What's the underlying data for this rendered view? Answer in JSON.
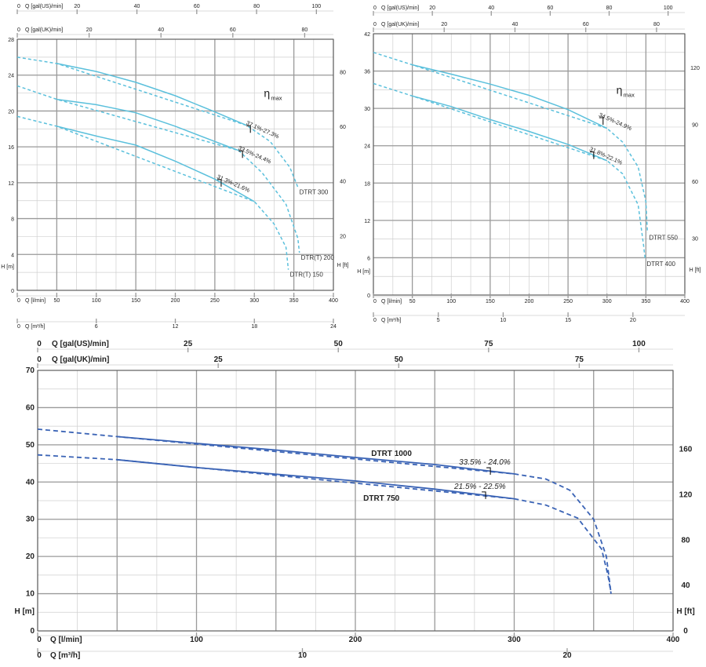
{
  "chart_data": [
    {
      "type": "line",
      "name": "chart-dtrt-300",
      "top_axes": [
        {
          "label": "Q [gal(US)/min]",
          "ticks": [
            0,
            20,
            40,
            60,
            80,
            100
          ]
        },
        {
          "label": "Q [gal(UK)/min]",
          "ticks": [
            0,
            20,
            40,
            60,
            80
          ]
        }
      ],
      "bottom_axes": [
        {
          "label": "Q [l/min]",
          "ticks": [
            0,
            50,
            100,
            150,
            200,
            250,
            300,
            350,
            400
          ],
          "xlim": [
            0,
            400
          ]
        },
        {
          "label": "Q [m³/h]",
          "ticks": [
            0,
            6,
            12,
            18,
            24
          ]
        }
      ],
      "ylabel_left": "H [m]",
      "ylim": [
        0,
        28
      ],
      "yticks": [
        0,
        4,
        8,
        12,
        16,
        20,
        24,
        28
      ],
      "ylabel_right": "H [ft]",
      "yticks_right": [
        20,
        40,
        60,
        80
      ],
      "eta_label": "η",
      "eta_sub": "max",
      "series": [
        {
          "name": "DTRT 300",
          "solid": [
            [
              50,
              25.3
            ],
            [
              100,
              24.4
            ],
            [
              150,
              23.2
            ],
            [
              200,
              21.7
            ],
            [
              250,
              19.9
            ],
            [
              290,
              18.4
            ]
          ],
          "dashed": [
            [
              0,
              26
            ],
            [
              50,
              25.3
            ],
            [
              290,
              18.4
            ],
            [
              320,
              16.6
            ],
            [
              345,
              13.7
            ],
            [
              355,
              11.5
            ]
          ],
          "efficiency": "37.1%-27.3%",
          "eff_at": [
            295,
            18
          ]
        },
        {
          "name": "DTR(T) 200",
          "solid": [
            [
              50,
              21.3
            ],
            [
              100,
              20.7
            ],
            [
              150,
              19.8
            ],
            [
              200,
              18.3
            ],
            [
              250,
              16.6
            ],
            [
              280,
              15.6
            ]
          ],
          "dashed": [
            [
              0,
              22.8
            ],
            [
              50,
              21.3
            ],
            [
              280,
              15.6
            ],
            [
              310,
              13.1
            ],
            [
              340,
              9.6
            ],
            [
              355,
              5.8
            ],
            [
              357,
              4.2
            ]
          ],
          "efficiency": "33.5%-24.4%",
          "eff_at": [
            285,
            15.2
          ]
        },
        {
          "name": "DTR(T) 150",
          "solid": [
            [
              50,
              18.3
            ],
            [
              100,
              17.2
            ],
            [
              150,
              16.2
            ],
            [
              200,
              14.4
            ],
            [
              250,
              12.4
            ],
            [
              300,
              9.9
            ]
          ],
          "dashed": [
            [
              0,
              19.4
            ],
            [
              50,
              18.3
            ],
            [
              300,
              9.9
            ],
            [
              325,
              7.4
            ],
            [
              340,
              4.8
            ],
            [
              343,
              2.3
            ]
          ],
          "efficiency": "31.3%-21.6%",
          "eff_at": [
            258,
            12
          ]
        }
      ]
    },
    {
      "type": "line",
      "name": "chart-dtrt-550",
      "top_axes": [
        {
          "label": "Q [gal(US)/min]",
          "ticks": [
            0,
            20,
            40,
            60,
            80,
            100
          ]
        },
        {
          "label": "Q [gal(UK)/min]",
          "ticks": [
            0,
            20,
            40,
            60,
            80
          ]
        }
      ],
      "bottom_axes": [
        {
          "label": "Q [l/min]",
          "ticks": [
            0,
            50,
            100,
            150,
            200,
            250,
            300,
            350,
            400
          ],
          "xlim": [
            0,
            400
          ]
        },
        {
          "label": "Q [m³/h]",
          "ticks": [
            0,
            5,
            10,
            15,
            20
          ]
        }
      ],
      "ylabel_left": "H [m]",
      "ylim": [
        0,
        42
      ],
      "yticks": [
        0,
        6,
        12,
        18,
        24,
        30,
        36,
        42
      ],
      "ylabel_right": "H [ft]",
      "yticks_right": [
        30,
        60,
        90,
        120
      ],
      "eta_label": "η",
      "eta_sub": "max",
      "series": [
        {
          "name": "DTRT 550",
          "solid": [
            [
              50,
              37
            ],
            [
              100,
              35.5
            ],
            [
              150,
              33.9
            ],
            [
              200,
              32.1
            ],
            [
              250,
              29.8
            ],
            [
              300,
              26.8
            ]
          ],
          "dashed": [
            [
              0,
              39
            ],
            [
              50,
              37
            ],
            [
              300,
              26.8
            ],
            [
              320,
              24.6
            ],
            [
              340,
              20.6
            ],
            [
              350,
              15
            ],
            [
              352,
              10
            ]
          ],
          "efficiency": "34.5%-24.9%",
          "eff_at": [
            295,
            28
          ]
        },
        {
          "name": "DTRT 400",
          "solid": [
            [
              50,
              32
            ],
            [
              100,
              30.3
            ],
            [
              150,
              28.2
            ],
            [
              200,
              26.3
            ],
            [
              250,
              24.2
            ],
            [
              300,
              21.6
            ]
          ],
          "dashed": [
            [
              0,
              34
            ],
            [
              50,
              32
            ],
            [
              300,
              21.6
            ],
            [
              320,
              19.5
            ],
            [
              340,
              14.5
            ],
            [
              347,
              8
            ],
            [
              349,
              5.8
            ]
          ],
          "efficiency": "31.8%-22.1%",
          "eff_at": [
            283,
            22.5
          ]
        }
      ]
    },
    {
      "type": "line",
      "name": "chart-dtrt-1000",
      "top_axes": [
        {
          "label": "Q [gal(US)/min]",
          "ticks": [
            0,
            25,
            50,
            75,
            100
          ]
        },
        {
          "label": "Q [gal(UK)/min]",
          "ticks": [
            0,
            25,
            50,
            75
          ]
        }
      ],
      "bottom_axes": [
        {
          "label": "Q [l/min]",
          "ticks": [
            0,
            100,
            200,
            300,
            400
          ],
          "xlim": [
            0,
            400
          ]
        },
        {
          "label": "Q [m³/h]",
          "ticks": [
            0,
            10,
            20
          ]
        }
      ],
      "ylabel_left": "H [m]",
      "ylim": [
        0,
        70
      ],
      "yticks": [
        0,
        10,
        20,
        30,
        40,
        50,
        60,
        70
      ],
      "ylabel_right": "H [ft]",
      "yticks_right": [
        0,
        40,
        80,
        120,
        160
      ],
      "series": [
        {
          "name": "DTRT 1000",
          "solid": [
            [
              50,
              52.2
            ],
            [
              100,
              50.4
            ],
            [
              150,
              48.6
            ],
            [
              200,
              46.6
            ],
            [
              250,
              44.7
            ],
            [
              300,
              42.2
            ]
          ],
          "dashed": [
            [
              0,
              54.2
            ],
            [
              50,
              52.2
            ],
            [
              300,
              42.2
            ],
            [
              320,
              40.8
            ],
            [
              335,
              37.8
            ],
            [
              350,
              30
            ],
            [
              358,
              20
            ],
            [
              361,
              10
            ]
          ],
          "efficiency": "33.5% - 24.0%",
          "eff_at": [
            285,
            43
          ]
        },
        {
          "name": "DTRT 750",
          "solid": [
            [
              50,
              46
            ],
            [
              100,
              43.9
            ],
            [
              150,
              42.1
            ],
            [
              200,
              40.3
            ],
            [
              250,
              38.1
            ],
            [
              300,
              35.5
            ]
          ],
          "dashed": [
            [
              0,
              47.3
            ],
            [
              50,
              46
            ],
            [
              300,
              35.5
            ],
            [
              320,
              33.8
            ],
            [
              340,
              30.3
            ],
            [
              355,
              22
            ],
            [
              359,
              15
            ],
            [
              361,
              10
            ]
          ],
          "efficiency": "21.5% - 22.5%",
          "eff_at": [
            282,
            36.5
          ]
        }
      ]
    }
  ]
}
